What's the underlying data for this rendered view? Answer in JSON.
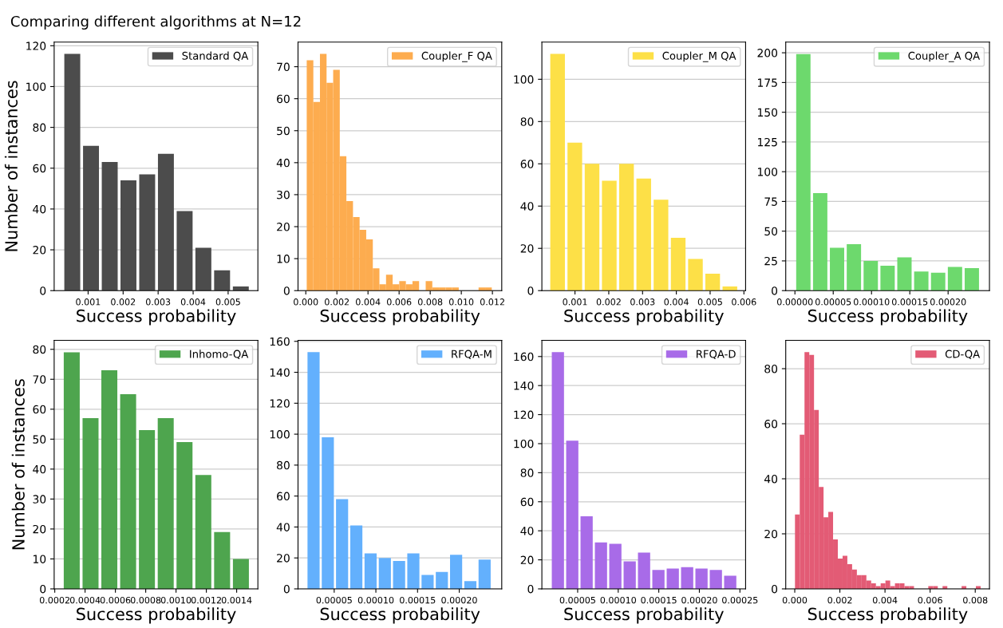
{
  "chart_data": [
    {
      "type": "histogram",
      "title": "Comparing different algorithms at N=12",
      "xlabel": "Success probability",
      "ylabel": "Number of instances",
      "legend": "top right",
      "grid": "y",
      "bins": [
        0.00028,
        0.000815,
        0.00135,
        0.001885,
        0.00242,
        0.002955,
        0.00349,
        0.004025,
        0.00456,
        0.005095,
        0.00563
      ],
      "series": [
        {
          "name": "Standard QA",
          "color": "#4c4c4c",
          "values": [
            116,
            71,
            63,
            54,
            57,
            67,
            39,
            21,
            10,
            2
          ]
        }
      ],
      "xlim": [
        3e-05,
        0.00585
      ],
      "xticks": [
        0.001,
        0.002,
        0.003,
        0.004,
        0.005
      ],
      "ylim": [
        0,
        121.8
      ],
      "yticks": [
        0,
        20,
        40,
        60,
        80,
        100,
        120
      ]
    },
    {
      "type": "histogram",
      "xlabel": "Success probability",
      "legend": "top right",
      "grid": "y",
      "bins": [
        6e-05,
        0.000485,
        0.00091,
        0.001335,
        0.00176,
        0.002185,
        0.00261,
        0.003035,
        0.00346,
        0.003885,
        0.00431,
        0.004735,
        0.00516,
        0.005585,
        0.00601,
        0.006435,
        0.00686,
        0.007285,
        0.00771,
        0.008135,
        0.00856,
        0.008985,
        0.00941,
        0.009835,
        0.01026,
        0.010685,
        0.01111,
        0.011535,
        0.01196
      ],
      "series": [
        {
          "name": "Coupler_F QA",
          "color": "#fdac4f",
          "values": [
            72,
            59,
            74,
            65,
            69,
            42,
            28,
            23,
            19,
            16,
            7,
            2,
            5,
            2,
            3,
            2,
            3,
            0,
            3,
            1,
            1,
            1,
            1,
            0,
            0,
            0,
            1,
            1
          ]
        }
      ],
      "xlim": [
        -0.0005,
        0.0126
      ],
      "xticks": [
        {
          "value": 0,
          "label": "0.000"
        },
        {
          "value": 0.002,
          "label": "0.002"
        },
        {
          "value": 0.004,
          "label": "0.004"
        },
        {
          "value": 0.006,
          "label": "0.006"
        },
        {
          "value": 0.008,
          "label": "0.008"
        },
        {
          "value": 0.01,
          "label": "0.010"
        },
        {
          "value": 0.012,
          "label": "0.012"
        }
      ],
      "ylim": [
        0,
        77.7
      ],
      "yticks": [
        0,
        10,
        20,
        30,
        40,
        50,
        60,
        70
      ]
    },
    {
      "type": "histogram",
      "xlabel": "Success probability",
      "legend": "top right",
      "grid": "y",
      "bins": [
        0.00023,
        0.00074,
        0.00125,
        0.00176,
        0.00227,
        0.00278,
        0.00329,
        0.0038,
        0.00431,
        0.00482,
        0.00533,
        0.00584
      ],
      "series": [
        {
          "name": "Coupler_M QA",
          "color": "#fde047",
          "values": [
            112,
            70,
            60,
            52,
            60,
            53,
            43,
            25,
            15,
            8,
            2
          ]
        }
      ],
      "xlim": [
        2e-05,
        0.00605
      ],
      "xticks": [
        0.001,
        0.002,
        0.003,
        0.004,
        0.005,
        0.006
      ],
      "ylim": [
        0,
        117.6
      ],
      "yticks": [
        0,
        20,
        40,
        60,
        80,
        100
      ]
    },
    {
      "type": "histogram",
      "xlabel": "Success probability",
      "legend": "top right",
      "grid": "y",
      "bins": [
        0,
        2.2e-05,
        4.4e-05,
        6.6e-05,
        8.8e-05,
        0.00011,
        0.000132,
        0.000154,
        0.000176,
        0.000198,
        0.00022,
        0.000242
      ],
      "series": [
        {
          "name": "Coupler_A QA",
          "color": "#6dd96d",
          "values": [
            199,
            82,
            36,
            39,
            25,
            21,
            28,
            16,
            15,
            20,
            19
          ]
        }
      ],
      "xlim": [
        -1.2e-05,
        0.000254
      ],
      "xticks": [
        {
          "value": 0,
          "label": "0.00000"
        },
        {
          "value": 5e-05,
          "label": "0.00005"
        },
        {
          "value": 0.0001,
          "label": "0.00010"
        },
        {
          "value": 0.00015,
          "label": "0.00015"
        },
        {
          "value": 0.0002,
          "label": "0.00020"
        }
      ],
      "ylim": [
        0,
        209
      ],
      "yticks": [
        0,
        25,
        50,
        75,
        100,
        125,
        150,
        175,
        200
      ]
    },
    {
      "type": "histogram",
      "xlabel": "Success probability",
      "ylabel": "Number of instances",
      "legend": "top right",
      "grid": "y",
      "bins": [
        0.00025,
        0.000374,
        0.000498,
        0.000622,
        0.000746,
        0.00087,
        0.000994,
        0.001118,
        0.001242,
        0.001366,
        0.00149
      ],
      "series": [
        {
          "name": "Inhomo-QA",
          "color": "#4ea54e",
          "values": [
            79,
            57,
            73,
            65,
            53,
            57,
            49,
            38,
            19,
            10
          ]
        }
      ],
      "xlim": [
        0.000196,
        0.00154
      ],
      "xticks": [
        0.0002,
        0.0004,
        0.0006,
        0.0008,
        {
          "value": 0.001,
          "label": "0.0010"
        },
        0.0012,
        0.0014
      ],
      "ylim": [
        0,
        83
      ],
      "yticks": [
        0,
        10,
        20,
        30,
        40,
        50,
        60,
        70,
        80
      ]
    },
    {
      "type": "histogram",
      "xlabel": "Success probability",
      "legend": "top right",
      "grid": "y",
      "bins": [
        1.67e-05,
        3.38e-05,
        5.09e-05,
        6.8e-05,
        8.51e-05,
        0.0001022,
        0.0001193,
        0.0001364,
        0.0001535,
        0.0001706,
        0.0001877,
        0.0002048,
        0.0002219,
        0.000239
      ],
      "series": [
        {
          "name": "RFQA-M",
          "color": "#63b0fd",
          "values": [
            153,
            98,
            58,
            41,
            23,
            20,
            18,
            23,
            9,
            11,
            22,
            5,
            19
          ]
        }
      ],
      "xlim": [
        6.6e-06,
        0.000251
      ],
      "xticks": [
        {
          "value": 5e-05,
          "label": "0.00005"
        },
        {
          "value": 0.0001,
          "label": "0.00010"
        },
        {
          "value": 0.00015,
          "label": "0.00015"
        },
        {
          "value": 0.0002,
          "label": "0.00020"
        }
      ],
      "ylim": [
        0,
        160.65
      ],
      "yticks": [
        0,
        20,
        40,
        60,
        80,
        100,
        120,
        140,
        160
      ]
    },
    {
      "type": "histogram",
      "xlabel": "Success probability",
      "legend": "top right",
      "grid": "y",
      "bins": [
        1.68e-05,
        3.45e-05,
        5.22e-05,
        6.99e-05,
        8.76e-05,
        0.0001053,
        0.000123,
        0.0001407,
        0.0001584,
        0.0001761,
        0.0001938,
        0.0002115,
        0.0002292,
        0.0002469
      ],
      "series": [
        {
          "name": "RFQA-D",
          "color": "#a86be8",
          "values": [
            163,
            102,
            50,
            32,
            31,
            19,
            25,
            13,
            14,
            15,
            14,
            13,
            9
          ]
        }
      ],
      "xlim": [
        5.9e-06,
        0.000257
      ],
      "xticks": [
        {
          "value": 5e-05,
          "label": "0.00005"
        },
        {
          "value": 0.0001,
          "label": "0.00010"
        },
        {
          "value": 0.00015,
          "label": "0.00015"
        },
        {
          "value": 0.0002,
          "label": "0.00020"
        },
        {
          "value": 0.00025,
          "label": "0.00025"
        }
      ],
      "ylim": [
        0,
        171.15
      ],
      "yticks": [
        0,
        20,
        40,
        60,
        80,
        100,
        120,
        140,
        160
      ]
    },
    {
      "type": "histogram",
      "xlabel": "Success probability",
      "legend": "top right",
      "grid": "y",
      "bins": [
        1e-05,
        0.000221,
        0.000432,
        0.000643,
        0.000854,
        0.001065,
        0.001276,
        0.001487,
        0.001698,
        0.001909,
        0.00212,
        0.002331,
        0.002542,
        0.002753,
        0.002964,
        0.003175,
        0.003386,
        0.003597,
        0.003808,
        0.004019,
        0.00423,
        0.004441,
        0.004652,
        0.004863,
        0.005074,
        0.005285,
        0.005496,
        0.005707,
        0.005918,
        0.006129,
        0.00634,
        0.006551,
        0.006762,
        0.006973,
        0.007184,
        0.007395,
        0.007606,
        0.007817,
        0.008028,
        0.008239
      ],
      "series": [
        {
          "name": "CD-QA",
          "color": "#e35b75",
          "values": [
            27,
            56,
            86,
            85,
            65,
            37,
            26,
            28,
            18,
            11,
            12,
            9,
            7,
            5,
            5,
            3,
            2,
            1,
            2,
            3,
            1,
            2,
            2,
            1,
            1,
            0,
            0,
            0,
            1,
            1,
            0,
            1,
            0,
            0,
            0,
            1,
            0,
            0,
            1
          ]
        }
      ],
      "xlim": [
        -0.0004,
        0.00863
      ],
      "xticks": [
        {
          "value": 0,
          "label": "0.000"
        },
        {
          "value": 0.002,
          "label": "0.002"
        },
        {
          "value": 0.004,
          "label": "0.004"
        },
        {
          "value": 0.006,
          "label": "0.006"
        },
        {
          "value": 0.008,
          "label": "0.008"
        }
      ],
      "ylim": [
        0,
        90.3
      ],
      "yticks": [
        0,
        20,
        40,
        60,
        80
      ]
    }
  ]
}
